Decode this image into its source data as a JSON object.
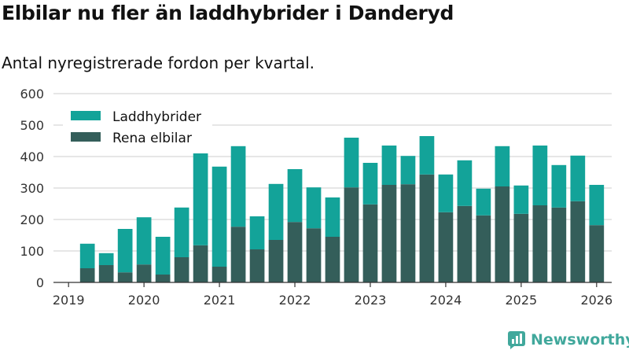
{
  "title": "Elbilar nu fler än laddhybrider i Danderyd",
  "subtitle": "Antal nyregistrerade fordon per kvartal.",
  "brand": {
    "name": "Newsworthy",
    "icon": "newsworthy-logo-icon"
  },
  "colors": {
    "laddhybrider": "#13a399",
    "rena_elbilar": "#345e5a",
    "grid": "#dddddd",
    "axis": "#333333",
    "brand": "#41a89c"
  },
  "chart_data": {
    "type": "bar",
    "stacked": true,
    "title": "Elbilar nu fler än laddhybrider i Danderyd",
    "subtitle": "Antal nyregistrerade fordon per kvartal.",
    "xlabel": "",
    "ylabel": "",
    "ylim": [
      0,
      600
    ],
    "yticks": [
      0,
      100,
      200,
      300,
      400,
      500,
      600
    ],
    "xticks": [
      {
        "label": "2019",
        "pos": 0
      },
      {
        "label": "2020",
        "pos": 4
      },
      {
        "label": "2021",
        "pos": 8
      },
      {
        "label": "2022",
        "pos": 12
      },
      {
        "label": "2023",
        "pos": 16
      },
      {
        "label": "2024",
        "pos": 20
      },
      {
        "label": "2025",
        "pos": 24
      },
      {
        "label": "2026",
        "pos": 28
      }
    ],
    "x_range": [
      -0.8,
      28.8
    ],
    "grid": true,
    "legend": "top-left",
    "categories": [
      "2019 Q2",
      "2019 Q3",
      "2019 Q4",
      "2020 Q1",
      "2020 Q2",
      "2020 Q3",
      "2020 Q4",
      "2021 Q1",
      "2021 Q2",
      "2021 Q3",
      "2021 Q4",
      "2022 Q1",
      "2022 Q2",
      "2022 Q3",
      "2022 Q4",
      "2023 Q1",
      "2023 Q2",
      "2023 Q3",
      "2023 Q4",
      "2024 Q1",
      "2024 Q2",
      "2024 Q3",
      "2024 Q4",
      "2025 Q1",
      "2025 Q2",
      "2025 Q3",
      "2025 Q4",
      "2026 Q1"
    ],
    "x": [
      1,
      2,
      3,
      4,
      5,
      6,
      7,
      8,
      9,
      10,
      11,
      12,
      13,
      14,
      15,
      16,
      17,
      18,
      19,
      20,
      21,
      22,
      23,
      24,
      25,
      26,
      27,
      28
    ],
    "series": [
      {
        "name": "Rena elbilar",
        "key": "rena_elbilar",
        "values": [
          45,
          55,
          32,
          57,
          25,
          80,
          118,
          50,
          177,
          105,
          135,
          192,
          172,
          145,
          302,
          248,
          310,
          312,
          343,
          223,
          243,
          213,
          305,
          218,
          245,
          238,
          258,
          182
        ]
      },
      {
        "name": "Laddhybrider",
        "key": "laddhybrider",
        "values": [
          78,
          38,
          138,
          150,
          120,
          158,
          292,
          318,
          256,
          105,
          178,
          168,
          130,
          125,
          158,
          132,
          125,
          90,
          122,
          120,
          145,
          85,
          128,
          90,
          190,
          135,
          145,
          128
        ]
      }
    ],
    "legend_entries": [
      {
        "label": "Laddhybrider",
        "key": "laddhybrider"
      },
      {
        "label": "Rena elbilar",
        "key": "rena_elbilar"
      }
    ]
  }
}
